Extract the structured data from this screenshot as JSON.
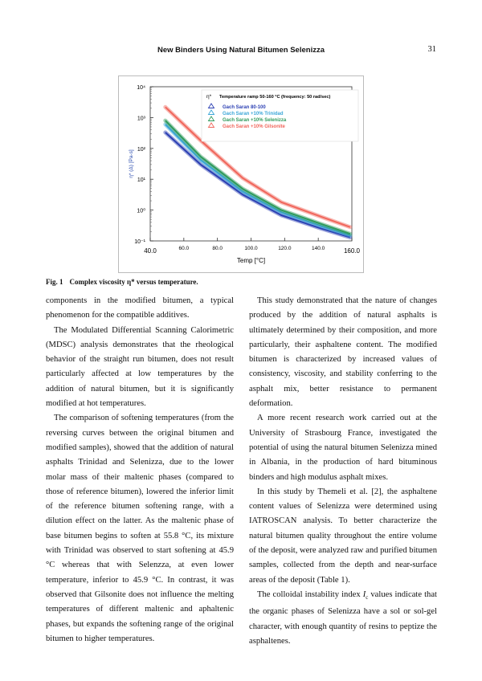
{
  "header": {
    "title": "New Binders Using Natural Bitumen Selenizza",
    "page": "31"
  },
  "figure": {
    "chart_data": {
      "type": "line",
      "log_y": true,
      "legend_title": "η*",
      "legend_note": "Temperature ramp  50-160 °C  (frequency:  50 rad/sec)",
      "xlabel": "Temp [°C]",
      "ylabel": "η* (Δ) [Pa-s]",
      "x": [
        49,
        70,
        95,
        118,
        142,
        159
      ],
      "series": [
        {
          "name": "Gach Saran 80-100",
          "color": "#2b3fb3",
          "values": [
            330,
            30,
            3.2,
            0.68,
            0.25,
            0.13
          ]
        },
        {
          "name": "Gach Saran +10% Trinidad",
          "color": "#3aa6d8",
          "values": [
            600,
            42,
            4.0,
            0.85,
            0.3,
            0.15
          ]
        },
        {
          "name": "Gach Saran +10% Selenizza",
          "color": "#2f9a5c",
          "values": [
            800,
            54,
            4.9,
            1.0,
            0.35,
            0.17
          ]
        },
        {
          "name": "Gach Saran +10% Gilsonite",
          "color": "#f0665b",
          "values": [
            2200,
            180,
            11,
            1.8,
            0.6,
            0.28
          ]
        }
      ],
      "xlim": [
        40,
        160
      ],
      "xticks": [
        {
          "value": 40,
          "label": "40.0"
        },
        {
          "value": 60,
          "label": "60.0"
        },
        {
          "value": 80,
          "label": "80.0"
        },
        {
          "value": 100,
          "label": "100.0"
        },
        {
          "value": 120,
          "label": "120.0"
        },
        {
          "value": 140,
          "label": "140.0"
        },
        {
          "value": 160,
          "label": "160.0"
        }
      ],
      "ylim": [
        0.1,
        10000
      ],
      "yticks": [
        {
          "value": 0.1,
          "label": "10⁻¹"
        },
        {
          "value": 1,
          "label": "10⁰"
        },
        {
          "value": 10,
          "label": "10¹"
        },
        {
          "value": 100,
          "label": "10²"
        },
        {
          "value": 1000,
          "label": "10³"
        },
        {
          "value": 10000,
          "label": "10⁴"
        }
      ]
    },
    "caption_label": "Fig. 1",
    "caption": "Complex viscosity η* versus temperature."
  },
  "left_column": [
    "components in the modified bitumen, a typical phenomenon for the compatible additives.",
    "The Modulated Differential Scanning Calorimetric (MDSC) analysis demonstrates that the rheological behavior of the straight run bitumen, does not result particularly affected at low temperatures by the addition of natural bitumen, but it is significantly modified at hot temperatures.",
    "The comparison of softening temperatures (from the reversing curves between the original bitumen and modified samples), showed that the addition of natural asphalts Trinidad and Selenizza, due to the lower molar mass of their maltenic phases (compared to those of reference bitumen), lowered the inferior limit of the reference bitumen softening range, with a dilution effect on the latter. As the maltenic phase of base bitumen begins to soften at 55.8 °C, its mixture with Trinidad was observed to start softening at 45.9 °C whereas that with Selenzza, at even lower temperature, inferior to 45.9 °C. In contrast, it was observed that Gilsonite does not influence the melting temperatures of different maltenic and aphaltenic phases, but expands the softening range of the original bitumen to higher temperatures."
  ],
  "right_column": [
    "This study demonstrated that the nature of changes produced by the addition of natural asphalts is ultimately determined by their composition, and more particularly, their asphaltene content. The modified bitumen is characterized by increased values of consistency, viscosity, and stability conferring to the asphalt mix, better resistance to permanent deformation.",
    "A more recent research work carried out at the University of Strasbourg France, investigated the potential of using the natural bitumen Selenizza mined in Albania, in the production of hard bituminous binders and high modulus asphalt mixes.",
    "In this study by Themeli et al. [2], the asphaltene content values of Selenizza were determined using IATROSCAN analysis. To better characterize the natural bitumen quality throughout the entire volume of the deposit, were analyzed raw and purified bitumen samples, collected from the depth and near-surface areas of the deposit (Table 1)."
  ],
  "last_paragraph": {
    "before": "The colloidal instability index ",
    "symbol": "I",
    "sub": "c",
    "after": " values indicate that the organic phases of Selenizza have a sol or sol-gel character, with enough quantity of resins to peptize the asphaltenes."
  }
}
